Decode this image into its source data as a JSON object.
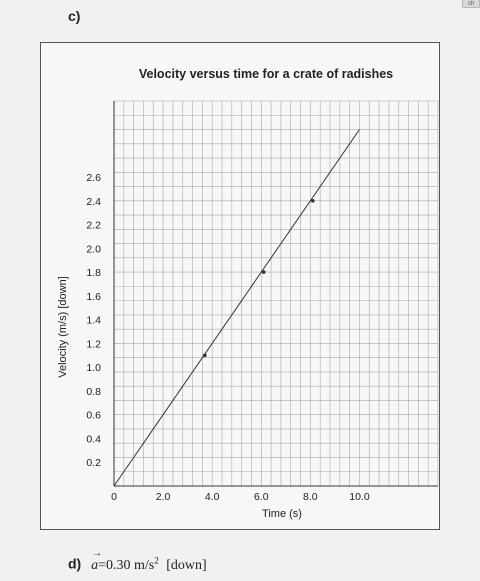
{
  "part_c_label": "c)",
  "chart_data": {
    "type": "line",
    "title": "Velocity versus time for a crate of radishes",
    "xlabel": "Time (s)",
    "ylabel": "Velocity (m/s) [down]",
    "xlim": [
      0,
      13.2
    ],
    "ylim": [
      0,
      3.24
    ],
    "x_ticks": [
      0,
      2.0,
      4.0,
      6.0,
      8.0,
      10.0
    ],
    "x_tick_labels": [
      "0",
      "2.0",
      "4.0",
      "6.0",
      "8.0",
      "10.0"
    ],
    "y_ticks": [
      0.2,
      0.4,
      0.6,
      0.8,
      1.0,
      1.2,
      1.4,
      1.6,
      1.8,
      2.0,
      2.2,
      2.4,
      2.6
    ],
    "y_tick_labels": [
      "0.2",
      "0.4",
      "0.6",
      "0.8",
      "1.0",
      "1.2",
      "1.4",
      "1.6",
      "1.8",
      "2.0",
      "2.2",
      "2.4",
      "2.6"
    ],
    "grid": true,
    "series": [
      {
        "points": [
          {
            "x": 3.7,
            "y": 1.1
          },
          {
            "x": 6.1,
            "y": 1.8
          },
          {
            "x": 8.1,
            "y": 2.4
          }
        ],
        "best_fit_line": {
          "x": [
            0.0,
            10.0
          ],
          "y": [
            0.0,
            3.0
          ]
        }
      }
    ],
    "colors": {
      "grid": "#a9a9a9",
      "axis": "#333333",
      "line": "#333333"
    }
  },
  "part_d": {
    "label": "d)",
    "symbol": "a",
    "expression": "=0.30 m/s",
    "exponent": "2",
    "direction": "[down]"
  }
}
